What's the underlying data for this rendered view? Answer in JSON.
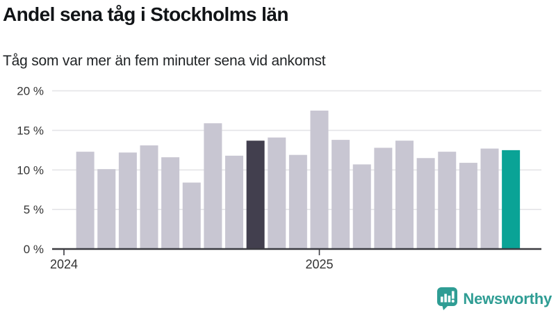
{
  "header": {
    "title": "Andel sena tåg i Stockholms län",
    "subtitle": "Tåg som var mer än fem minuter sena vid ankomst"
  },
  "chart_data": {
    "type": "bar",
    "title": "Andel sena tåg i Stockholms län",
    "subtitle": "Tåg som var mer än fem minuter sena vid ankomst",
    "unit": "%",
    "granularity": "monthly bars",
    "values": [
      12.3,
      10.1,
      12.2,
      13.1,
      11.6,
      8.4,
      15.9,
      11.8,
      13.7,
      14.1,
      11.9,
      17.5,
      13.8,
      10.7,
      12.8,
      13.7,
      11.5,
      12.3,
      10.9,
      12.7,
      12.5
    ],
    "highlight_dark_index": 8,
    "highlight_accent_index": 20,
    "ylim": [
      0,
      20
    ],
    "yticks": [
      {
        "value": 0,
        "label": "0 %"
      },
      {
        "value": 5,
        "label": "5 %"
      },
      {
        "value": 10,
        "label": "10 %"
      },
      {
        "value": 15,
        "label": "15 %"
      },
      {
        "value": 20,
        "label": "20 %"
      }
    ],
    "xticks": [
      {
        "label": "2024",
        "bar_index": -1
      },
      {
        "label": "2025",
        "bar_index": 11
      }
    ],
    "grid": true,
    "legend": "none",
    "colors": {
      "bar_default": "#c8c6d2",
      "bar_dark": "#423f4e",
      "bar_accent": "#0aa396",
      "grid": "#e4e4e7",
      "axis": "#3a3a40",
      "tick_text": "#333333"
    }
  },
  "footer": {
    "brand": "Newsworthy",
    "brand_color": "#2f9d94",
    "icon": "newsworthy-bubble-barchart-icon"
  }
}
